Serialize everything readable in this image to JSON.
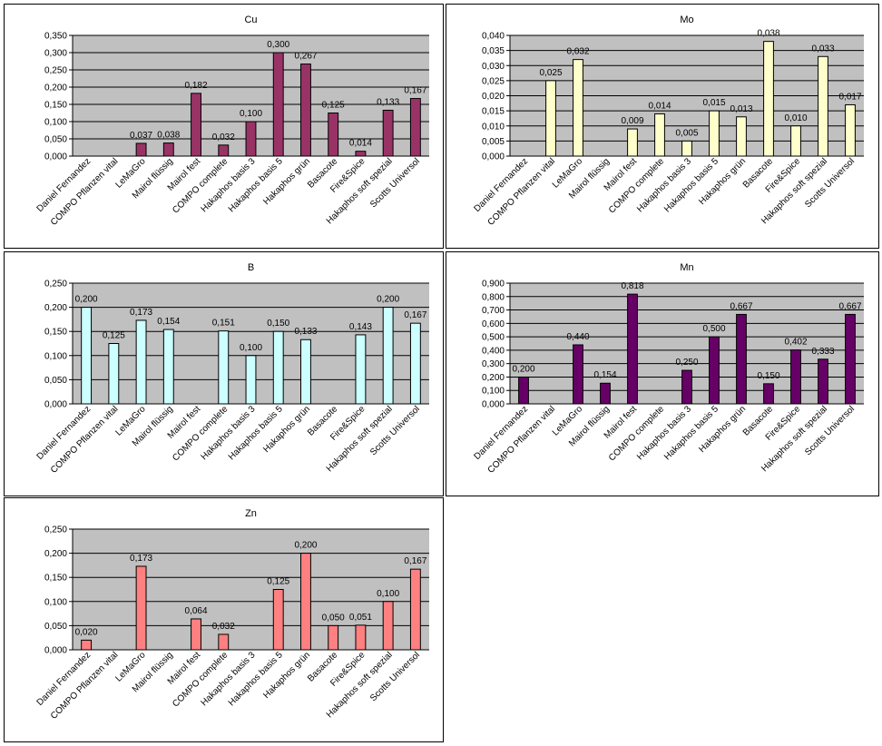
{
  "chart_data": [
    {
      "type": "bar",
      "title": "Cu",
      "color": "#993366",
      "categories": [
        "Daniel Fernandez",
        "COMPO Pflanzen vital",
        "LeMaGro",
        "Mairol flüssig",
        "Mairol fest",
        "COMPO complete",
        "Hakaphos basis 3",
        "Hakaphos basis 5",
        "Hakaphos grün",
        "Basacote",
        "Fire&Spice",
        "Hakaphos soft spezial",
        "Scotts Universol"
      ],
      "values": [
        null,
        null,
        0.037,
        0.038,
        0.182,
        0.032,
        0.1,
        0.3,
        0.267,
        0.125,
        0.014,
        0.133,
        0.167
      ],
      "labels": [
        "",
        "",
        "0,037",
        "0,038",
        "0,182",
        "0,032",
        "0,100",
        "0,300",
        "0,267",
        "0,125",
        "0,014",
        "0,133",
        "0,167"
      ],
      "yticks": [
        "0,000",
        "0,050",
        "0,100",
        "0,150",
        "0,200",
        "0,250",
        "0,300",
        "0,350"
      ],
      "ylim": [
        0,
        0.35
      ],
      "grid": true,
      "legend": "none"
    },
    {
      "type": "bar",
      "title": "Mo",
      "color": "#FFFFCC",
      "categories": [
        "Daniel Fernandez",
        "COMPO Pflanzen vital",
        "LeMaGro",
        "Mairol flüssig",
        "Mairol fest",
        "COMPO complete",
        "Hakaphos basis 3",
        "Hakaphos basis 5",
        "Hakaphos grün",
        "Basacote",
        "Fire&Spice",
        "Hakaphos soft spezial",
        "Scotts Universol"
      ],
      "values": [
        null,
        0.025,
        0.032,
        null,
        0.009,
        0.014,
        0.005,
        0.015,
        0.013,
        0.038,
        0.01,
        0.033,
        0.017
      ],
      "labels": [
        "",
        "0,025",
        "0,032",
        "",
        "0,009",
        "0,014",
        "0,005",
        "0,015",
        "0,013",
        "0,038",
        "0,010",
        "0,033",
        "0,017"
      ],
      "yticks": [
        "0,000",
        "0,005",
        "0,010",
        "0,015",
        "0,020",
        "0,025",
        "0,030",
        "0,035",
        "0,040"
      ],
      "ylim": [
        0,
        0.04
      ],
      "grid": true,
      "legend": "none"
    },
    {
      "type": "bar",
      "title": "B",
      "color": "#CCFFFF",
      "categories": [
        "Daniel Fernandez",
        "COMPO Pflanzen vital",
        "LeMaGro",
        "Mairol flüssig",
        "Mairol fest",
        "COMPO complete",
        "Hakaphos basis 3",
        "Hakaphos basis 5",
        "Hakaphos grün",
        "Basacote",
        "Fire&Spice",
        "Hakaphos soft spezial",
        "Scotts Universol"
      ],
      "values": [
        0.2,
        0.125,
        0.173,
        0.154,
        null,
        0.151,
        0.1,
        0.15,
        0.133,
        null,
        0.143,
        0.2,
        0.167
      ],
      "labels": [
        "0,200",
        "0,125",
        "0,173",
        "0,154",
        "",
        "0,151",
        "0,100",
        "0,150",
        "0,133",
        "",
        "0,143",
        "0,200",
        "0,167"
      ],
      "yticks": [
        "0,000",
        "0,050",
        "0,100",
        "0,150",
        "0,200",
        "0,250"
      ],
      "ylim": [
        0,
        0.25
      ],
      "grid": true,
      "legend": "none"
    },
    {
      "type": "bar",
      "title": "Mn",
      "color": "#660066",
      "categories": [
        "Daniel Fernandez",
        "COMPO Pflanzen vital",
        "LeMaGro",
        "Mairol flüssig",
        "Mairol fest",
        "COMPO complete",
        "Hakaphos basis 3",
        "Hakaphos basis 5",
        "Hakaphos grün",
        "Basacote",
        "Fire&Spice",
        "Hakaphos soft spezial",
        "Scotts Universol"
      ],
      "values": [
        0.2,
        null,
        0.44,
        0.154,
        0.818,
        null,
        0.25,
        0.5,
        0.667,
        0.15,
        0.402,
        0.333,
        0.667
      ],
      "labels": [
        "0,200",
        "",
        "0,440",
        "0,154",
        "0,818",
        "",
        "0,250",
        "0,500",
        "0,667",
        "0,150",
        "0,402",
        "0,333",
        "0,667"
      ],
      "yticks": [
        "0,000",
        "0,100",
        "0,200",
        "0,300",
        "0,400",
        "0,500",
        "0,600",
        "0,700",
        "0,800",
        "0,900"
      ],
      "ylim": [
        0,
        0.9
      ],
      "grid": true,
      "legend": "none"
    },
    {
      "type": "bar",
      "title": "Zn",
      "color": "#FF8080",
      "categories": [
        "Daniel Fernandez",
        "COMPO Pflanzen vital",
        "LeMaGro",
        "Mairol flüssig",
        "Mairol fest",
        "COMPO complete",
        "Hakaphos basis 3",
        "Hakaphos basis 5",
        "Hakaphos grün",
        "Basacote",
        "Fire&Spice",
        "Hakaphos soft spezial",
        "Scotts Universol"
      ],
      "values": [
        0.02,
        null,
        0.173,
        null,
        0.064,
        0.032,
        null,
        0.125,
        0.2,
        0.05,
        0.051,
        0.1,
        0.167
      ],
      "labels": [
        "0,020",
        "",
        "0,173",
        "",
        "0,064",
        "0,032",
        "",
        "0,125",
        "0,200",
        "0,050",
        "0,051",
        "0,100",
        "0,167"
      ],
      "yticks": [
        "0,000",
        "0,050",
        "0,100",
        "0,150",
        "0,200",
        "0,250"
      ],
      "ylim": [
        0,
        0.25
      ],
      "grid": true,
      "legend": "none"
    }
  ]
}
